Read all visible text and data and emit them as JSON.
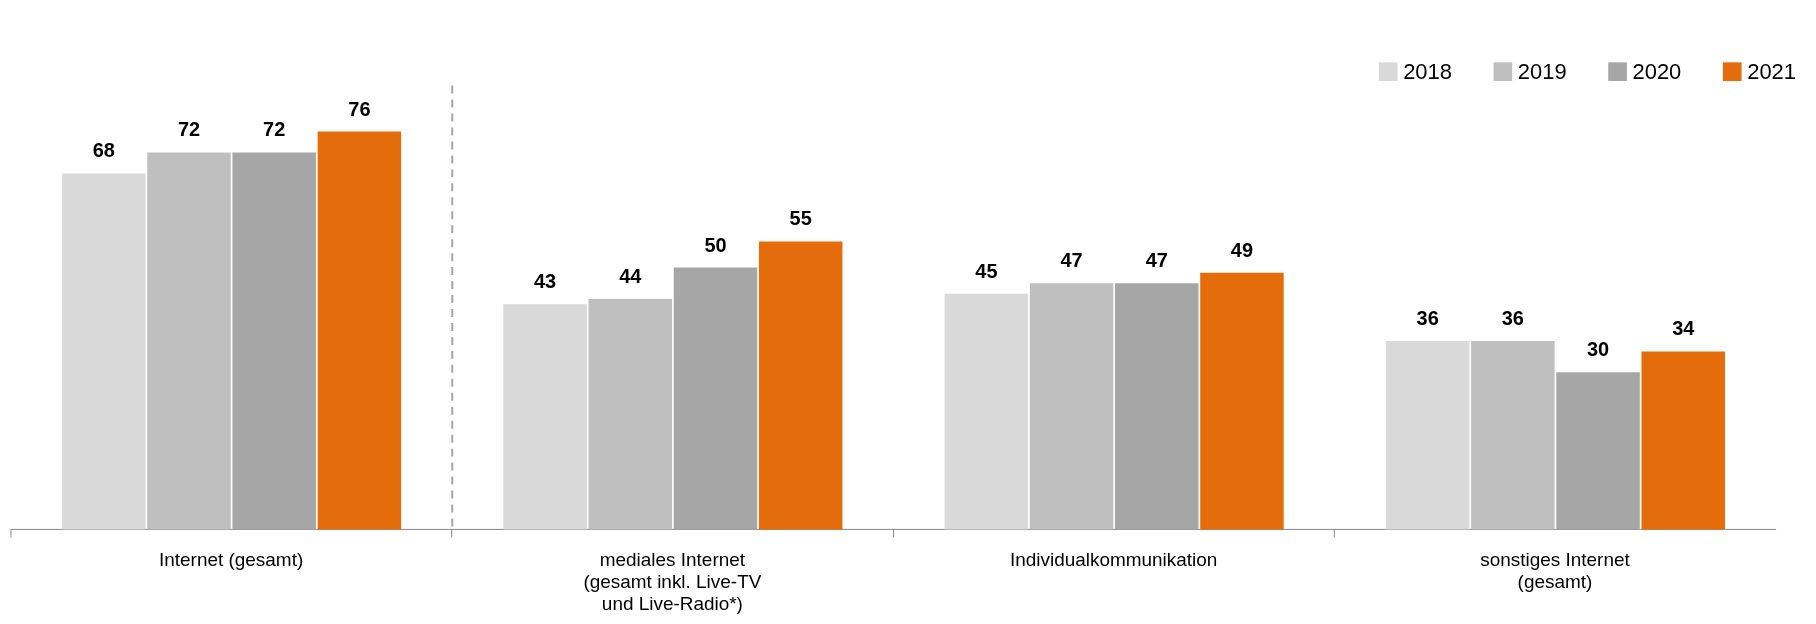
{
  "chart_data": {
    "type": "bar",
    "categories": [
      "Internet (gesamt)",
      "mediales Internet\n(gesamt inkl. Live-TV\nund Live-Radio*)",
      "Individualkommunikation",
      "sonstiges Internet\n(gesamt)"
    ],
    "series": [
      {
        "name": "2018",
        "color": "#d9d9d9",
        "values": [
          68,
          43,
          45,
          36
        ]
      },
      {
        "name": "2019",
        "color": "#bfbfbf",
        "values": [
          72,
          44,
          47,
          36
        ]
      },
      {
        "name": "2020",
        "color": "#a6a6a6",
        "values": [
          72,
          50,
          47,
          30
        ]
      },
      {
        "name": "2021",
        "color": "#e46c0a",
        "values": [
          76,
          55,
          49,
          34
        ]
      }
    ],
    "data_labels": true,
    "legend": "top right",
    "grid": false,
    "tick_labels": "x"
  }
}
